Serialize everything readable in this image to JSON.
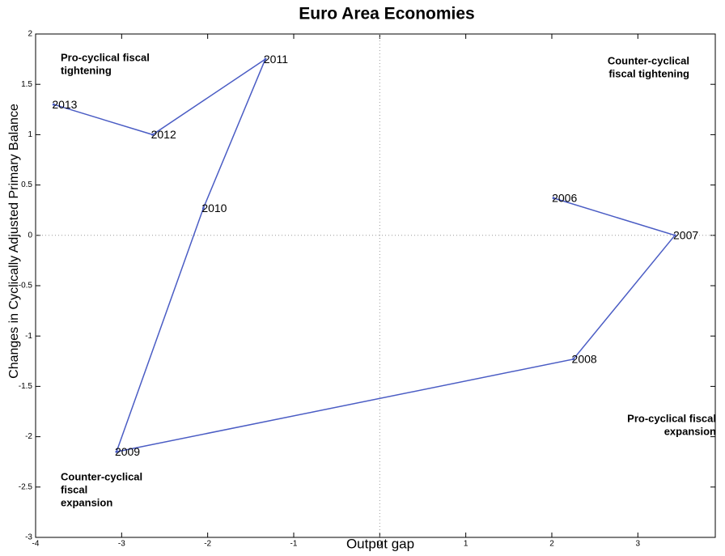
{
  "chart_data": {
    "type": "scatter",
    "title": "Euro Area Economies",
    "x_label": "Output gap",
    "y_label": "Changes in Cyclically Adjusted Primary Balance",
    "x": [
      2.02,
      3.43,
      2.25,
      -3.06,
      -2.05,
      -1.33,
      -2.64,
      -3.79
    ],
    "values": [
      0.37,
      0.0,
      -1.23,
      -2.15,
      0.27,
      1.75,
      1.0,
      1.3
    ],
    "point_labels": [
      "2006",
      "2007",
      "2008",
      "2009",
      "2010",
      "2011",
      "2012",
      "2013"
    ],
    "color": "#4a5cc4",
    "connect": true,
    "zero_lines": true,
    "xlim": [
      -4,
      3.9
    ],
    "xticks": [
      -4,
      -3,
      -2,
      -1,
      0,
      1,
      2,
      3
    ],
    "ylim": [
      -3,
      2
    ],
    "yticks": [
      2,
      1.5,
      1,
      0.5,
      0,
      -0.5,
      -1,
      -1.5,
      -2,
      -2.5,
      -3
    ],
    "annotations": [
      {
        "lines": [
          "Pro-cyclical fiscal",
          "tightening"
        ]
      },
      {
        "lines": [
          "Counter-cyclical",
          "fiscal tightening"
        ]
      },
      {
        "lines": [
          "Counter-cyclical",
          "fiscal",
          "expansion"
        ]
      },
      {
        "lines": [
          "Pro-cyclical fiscal",
          "expansion"
        ]
      }
    ]
  }
}
